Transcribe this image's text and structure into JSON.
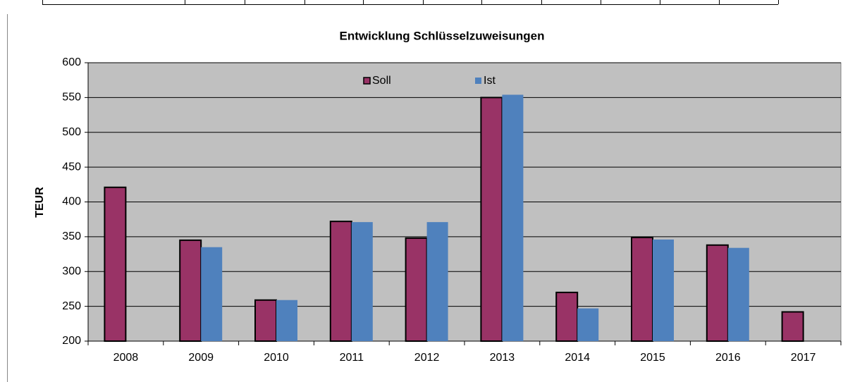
{
  "chart_data": {
    "type": "bar",
    "title": "Entwicklung Schlüsselzuweisungen",
    "y_label": "TEUR",
    "categories": [
      "2008",
      "2009",
      "2010",
      "2011",
      "2012",
      "2013",
      "2014",
      "2015",
      "2016",
      "2017"
    ],
    "series": [
      {
        "name": "Soll",
        "color": "#993366",
        "values": [
          421,
          345,
          259,
          372,
          348,
          550,
          270,
          349,
          338,
          242
        ]
      },
      {
        "name": "Ist",
        "color": "#4f81bd",
        "values": [
          null,
          335,
          259,
          371,
          371,
          554,
          247,
          346,
          334,
          null
        ]
      }
    ],
    "ylim": [
      200,
      600
    ],
    "yticks": [
      200,
      250,
      300,
      350,
      400,
      450,
      500,
      550,
      600
    ],
    "grid": true,
    "legend": "top"
  }
}
